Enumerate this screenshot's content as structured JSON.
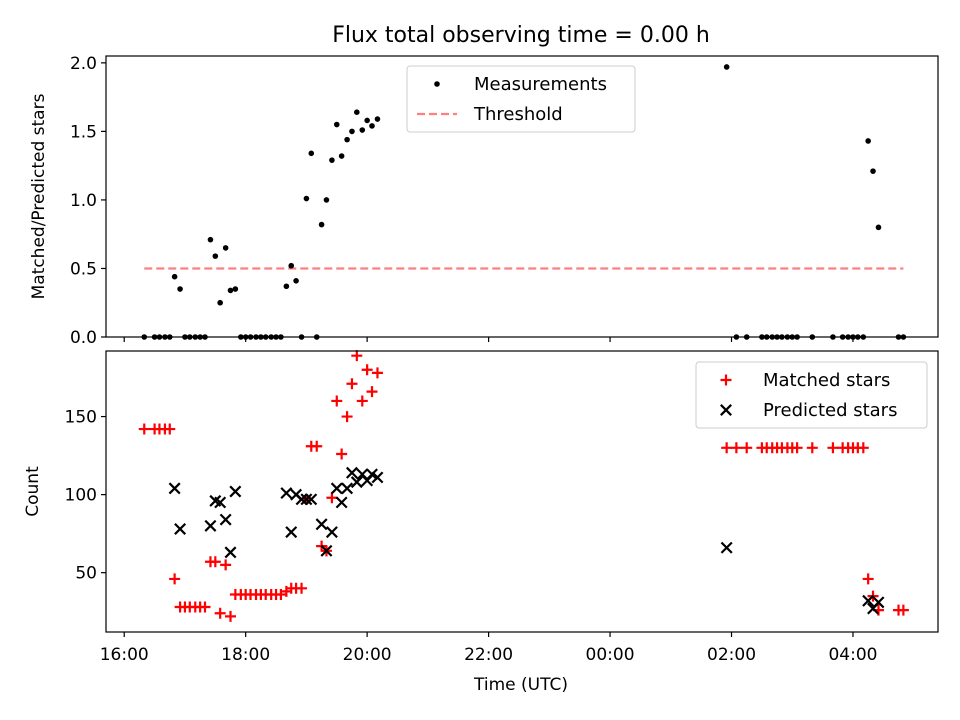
{
  "chart_data": {
    "title": "Flux total observing time = 0.00 h",
    "xlabel": "Time (UTC)",
    "x_unit": "hours since 16:00",
    "x_ticks": [
      {
        "value": 0,
        "label": "16:00"
      },
      {
        "value": 2,
        "label": "18:00"
      },
      {
        "value": 4,
        "label": "20:00"
      },
      {
        "value": 6,
        "label": "22:00"
      },
      {
        "value": 8,
        "label": "00:00"
      },
      {
        "value": 10,
        "label": "02:00"
      },
      {
        "value": 12,
        "label": "04:00"
      }
    ],
    "xlim": [
      -0.3,
      13.4
    ],
    "panels": [
      {
        "type": "scatter",
        "ylabel": "Matched/Predicted stars",
        "ylim": [
          0,
          2.05
        ],
        "y_ticks": [
          {
            "value": 0,
            "label": "0.0"
          },
          {
            "value": 0.5,
            "label": "0.5"
          },
          {
            "value": 1.0,
            "label": "1.0"
          },
          {
            "value": 1.5,
            "label": "1.5"
          },
          {
            "value": 2.0,
            "label": "2.0"
          }
        ],
        "legend": [
          "Measurements",
          "Threshold"
        ],
        "legend_position": "top-center",
        "threshold": {
          "name": "Threshold",
          "value": 0.5,
          "x_range": [
            0.33,
            12.83
          ],
          "color": "#ff7f7f"
        },
        "series": [
          {
            "name": "Measurements",
            "marker": "dot",
            "color": "#000000",
            "points": [
              [
                0.33,
                0
              ],
              [
                0.5,
                0
              ],
              [
                0.58,
                0
              ],
              [
                0.67,
                0
              ],
              [
                0.75,
                0
              ],
              [
                0.83,
                0.44
              ],
              [
                0.92,
                0.35
              ],
              [
                1.0,
                0
              ],
              [
                1.08,
                0
              ],
              [
                1.17,
                0
              ],
              [
                1.25,
                0
              ],
              [
                1.33,
                0
              ],
              [
                1.42,
                0.71
              ],
              [
                1.5,
                0.59
              ],
              [
                1.58,
                0.25
              ],
              [
                1.67,
                0.65
              ],
              [
                1.75,
                0.34
              ],
              [
                1.83,
                0.35
              ],
              [
                1.92,
                0
              ],
              [
                2.0,
                0
              ],
              [
                2.08,
                0
              ],
              [
                2.17,
                0
              ],
              [
                2.25,
                0
              ],
              [
                2.33,
                0
              ],
              [
                2.42,
                0
              ],
              [
                2.5,
                0
              ],
              [
                2.58,
                0
              ],
              [
                2.67,
                0.37
              ],
              [
                2.75,
                0.52
              ],
              [
                2.83,
                0.41
              ],
              [
                2.92,
                0
              ],
              [
                3.0,
                1.01
              ],
              [
                3.08,
                1.34
              ],
              [
                3.17,
                0
              ],
              [
                3.25,
                0.82
              ],
              [
                3.33,
                1.0
              ],
              [
                3.42,
                1.29
              ],
              [
                3.5,
                1.55
              ],
              [
                3.58,
                1.32
              ],
              [
                3.67,
                1.44
              ],
              [
                3.75,
                1.5
              ],
              [
                3.83,
                1.64
              ],
              [
                3.92,
                1.51
              ],
              [
                4.0,
                1.58
              ],
              [
                4.08,
                1.54
              ],
              [
                4.17,
                1.59
              ],
              [
                9.92,
                1.97
              ],
              [
                10.08,
                0
              ],
              [
                10.25,
                0
              ],
              [
                10.5,
                0
              ],
              [
                10.58,
                0
              ],
              [
                10.67,
                0
              ],
              [
                10.75,
                0
              ],
              [
                10.83,
                0
              ],
              [
                10.92,
                0
              ],
              [
                11.0,
                0
              ],
              [
                11.08,
                0
              ],
              [
                11.33,
                0
              ],
              [
                11.67,
                0
              ],
              [
                11.83,
                0
              ],
              [
                11.92,
                0
              ],
              [
                12.0,
                0
              ],
              [
                12.08,
                0
              ],
              [
                12.17,
                0
              ],
              [
                12.25,
                1.43
              ],
              [
                12.33,
                1.21
              ],
              [
                12.42,
                0.8
              ],
              [
                12.75,
                0
              ],
              [
                12.83,
                0
              ]
            ]
          }
        ]
      },
      {
        "type": "scatter",
        "ylabel": "Count",
        "ylim": [
          12,
          192
        ],
        "y_ticks": [
          {
            "value": 50,
            "label": "50"
          },
          {
            "value": 100,
            "label": "100"
          },
          {
            "value": 150,
            "label": "150"
          }
        ],
        "legend": [
          "Matched stars",
          "Predicted stars"
        ],
        "legend_position": "top-right",
        "series": [
          {
            "name": "Matched stars",
            "marker": "plus",
            "color": "#ff0000",
            "points": [
              [
                0.33,
                142
              ],
              [
                0.5,
                142
              ],
              [
                0.58,
                142
              ],
              [
                0.67,
                142
              ],
              [
                0.75,
                142
              ],
              [
                0.83,
                46
              ],
              [
                0.92,
                28
              ],
              [
                1.0,
                28
              ],
              [
                1.08,
                28
              ],
              [
                1.17,
                28
              ],
              [
                1.25,
                28
              ],
              [
                1.33,
                28
              ],
              [
                1.42,
                57
              ],
              [
                1.5,
                57
              ],
              [
                1.58,
                24
              ],
              [
                1.67,
                55
              ],
              [
                1.75,
                22
              ],
              [
                1.83,
                36
              ],
              [
                1.92,
                36
              ],
              [
                2.0,
                36
              ],
              [
                2.08,
                36
              ],
              [
                2.17,
                36
              ],
              [
                2.25,
                36
              ],
              [
                2.33,
                36
              ],
              [
                2.42,
                36
              ],
              [
                2.5,
                36
              ],
              [
                2.58,
                36
              ],
              [
                2.67,
                38
              ],
              [
                2.75,
                40
              ],
              [
                2.83,
                40
              ],
              [
                2.92,
                40
              ],
              [
                3.0,
                97
              ],
              [
                3.08,
                131
              ],
              [
                3.17,
                131
              ],
              [
                3.25,
                67
              ],
              [
                3.33,
                64
              ],
              [
                3.42,
                98
              ],
              [
                3.5,
                160
              ],
              [
                3.58,
                126
              ],
              [
                3.67,
                150
              ],
              [
                3.75,
                171
              ],
              [
                3.83,
                189
              ],
              [
                3.92,
                160
              ],
              [
                4.0,
                180
              ],
              [
                4.08,
                166
              ],
              [
                4.17,
                178
              ],
              [
                9.92,
                130
              ],
              [
                10.08,
                130
              ],
              [
                10.25,
                130
              ],
              [
                10.5,
                130
              ],
              [
                10.58,
                130
              ],
              [
                10.67,
                130
              ],
              [
                10.75,
                130
              ],
              [
                10.83,
                130
              ],
              [
                10.92,
                130
              ],
              [
                11.0,
                130
              ],
              [
                11.08,
                130
              ],
              [
                11.33,
                130
              ],
              [
                11.67,
                130
              ],
              [
                11.83,
                130
              ],
              [
                11.92,
                130
              ],
              [
                12.0,
                130
              ],
              [
                12.08,
                130
              ],
              [
                12.17,
                130
              ],
              [
                12.25,
                46
              ],
              [
                12.33,
                35
              ],
              [
                12.42,
                26
              ],
              [
                12.75,
                26
              ],
              [
                12.83,
                26
              ]
            ]
          },
          {
            "name": "Predicted stars",
            "marker": "x",
            "color": "#000000",
            "points": [
              [
                0.83,
                104
              ],
              [
                0.92,
                78
              ],
              [
                1.42,
                80
              ],
              [
                1.5,
                96
              ],
              [
                1.58,
                95
              ],
              [
                1.67,
                84
              ],
              [
                1.75,
                63
              ],
              [
                1.83,
                102
              ],
              [
                2.67,
                101
              ],
              [
                2.75,
                76
              ],
              [
                2.83,
                100
              ],
              [
                2.92,
                97
              ],
              [
                3.0,
                97
              ],
              [
                3.08,
                97
              ],
              [
                3.25,
                81
              ],
              [
                3.33,
                64
              ],
              [
                3.42,
                76
              ],
              [
                3.5,
                104
              ],
              [
                3.58,
                95
              ],
              [
                3.67,
                104
              ],
              [
                3.75,
                114
              ],
              [
                3.83,
                108
              ],
              [
                3.92,
                113
              ],
              [
                4.0,
                109
              ],
              [
                4.08,
                113
              ],
              [
                4.17,
                111
              ],
              [
                9.92,
                66
              ],
              [
                12.25,
                32
              ],
              [
                12.33,
                27
              ],
              [
                12.42,
                31
              ]
            ]
          }
        ]
      }
    ]
  }
}
